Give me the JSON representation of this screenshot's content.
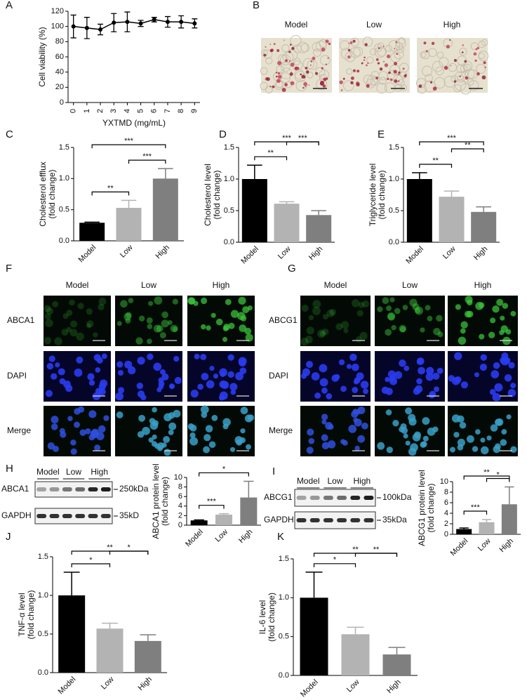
{
  "chart_data": [
    {
      "type": "line",
      "panel": "A",
      "x": [
        0,
        1,
        2,
        3,
        4,
        5,
        6,
        7,
        8,
        9
      ],
      "values": [
        100,
        98,
        96,
        105,
        106,
        104,
        109,
        106,
        106,
        104
      ],
      "errors": [
        15,
        14,
        7,
        12,
        13,
        4,
        3,
        7,
        8,
        6
      ],
      "color": "#000000",
      "xlim": [
        -0.4,
        9.4
      ],
      "ylim": [
        0,
        120
      ],
      "xticks": [
        0,
        1,
        2,
        3,
        4,
        5,
        6,
        7,
        8,
        9
      ],
      "yticks": [
        0,
        20,
        40,
        60,
        80,
        100,
        120
      ],
      "xlabel": "YXTMD (mg/mL)",
      "ylabel": [
        "Cell viability (%)"
      ]
    },
    {
      "type": "bar",
      "panel": "C",
      "categories": [
        "Model",
        "Low",
        "High"
      ],
      "values": [
        0.29,
        0.53,
        1.0
      ],
      "errors": [
        0.01,
        0.12,
        0.16
      ],
      "colors": [
        "#000000",
        "#b3b3b3",
        "#7f7f7f"
      ],
      "ylim": [
        0,
        1.5
      ],
      "yticks": [
        {
          "value": 0,
          "label": "0.0"
        },
        0.5,
        {
          "value": 1,
          "label": "1.0"
        },
        1.5
      ],
      "ylabel": [
        "Cholesterol efflux",
        "(fold change)"
      ],
      "brackets": [
        {
          "from": "Model",
          "to": "Low",
          "label": "**"
        },
        {
          "from": "Low",
          "to": "High",
          "label": "***"
        },
        {
          "from": "Model",
          "to": "High",
          "label": "***"
        }
      ]
    },
    {
      "type": "bar",
      "panel": "D",
      "categories": [
        "Model",
        "Low",
        "High"
      ],
      "values": [
        1.0,
        0.61,
        0.43
      ],
      "errors": [
        0.22,
        0.03,
        0.07
      ],
      "colors": [
        "#000000",
        "#b3b3b3",
        "#7f7f7f"
      ],
      "ylim": [
        0,
        1.5
      ],
      "yticks": [
        {
          "value": 0,
          "label": "0.0"
        },
        0.5,
        {
          "value": 1,
          "label": "1.0"
        },
        1.5
      ],
      "ylabel": [
        "Cholesterol level",
        "(fold change)"
      ],
      "brackets": [
        {
          "from": "Model",
          "to": "Low",
          "label": "**"
        },
        {
          "from": "Low",
          "to": "High",
          "label": "***"
        },
        {
          "from": "Model",
          "to": "High",
          "label": "***"
        }
      ]
    },
    {
      "type": "bar",
      "panel": "E",
      "categories": [
        "Model",
        "Low",
        "High"
      ],
      "values": [
        1.0,
        0.72,
        0.48
      ],
      "errors": [
        0.1,
        0.09,
        0.08
      ],
      "colors": [
        "#000000",
        "#b3b3b3",
        "#7f7f7f"
      ],
      "ylim": [
        0,
        1.5
      ],
      "yticks": [
        {
          "value": 0,
          "label": "0.0"
        },
        0.5,
        {
          "value": 1,
          "label": "1.0"
        },
        1.5
      ],
      "ylabel": [
        "Triglyceride level",
        "(fold change)"
      ],
      "brackets": [
        {
          "from": "Model",
          "to": "Low",
          "label": "**"
        },
        {
          "from": "Low",
          "to": "High",
          "label": "**"
        },
        {
          "from": "Model",
          "to": "High",
          "label": "***"
        }
      ]
    },
    {
      "type": "bar",
      "panel": "H",
      "categories": [
        "Model",
        "Low",
        "High"
      ],
      "values": [
        1.0,
        2.2,
        5.8
      ],
      "errors": [
        0.1,
        0.2,
        3.4
      ],
      "colors": [
        "#000000",
        "#b3b3b3",
        "#7f7f7f"
      ],
      "ylim": [
        0,
        10
      ],
      "yticks": [
        0,
        2,
        4,
        6,
        8,
        10
      ],
      "ylabel": [
        "ABCA1 protein level",
        "(fold change)"
      ],
      "brackets": [
        {
          "from": "Model",
          "to": "Low",
          "label": "***"
        },
        {
          "from": "Model",
          "to": "High",
          "label": "*"
        }
      ]
    },
    {
      "type": "bar",
      "panel": "I",
      "categories": [
        "Model",
        "Low",
        "High"
      ],
      "values": [
        1.0,
        2.3,
        5.7
      ],
      "errors": [
        0.2,
        0.5,
        3.3
      ],
      "colors": [
        "#000000",
        "#b3b3b3",
        "#7f7f7f"
      ],
      "ylim": [
        0,
        10
      ],
      "yticks": [
        0,
        2,
        4,
        6,
        8,
        10
      ],
      "ylabel": [
        "ABCG1 protein level",
        "(fold change)"
      ],
      "brackets": [
        {
          "from": "Model",
          "to": "Low",
          "label": "***"
        },
        {
          "from": "Low",
          "to": "High",
          "label": "*"
        },
        {
          "from": "Model",
          "to": "High",
          "label": "**"
        }
      ]
    },
    {
      "type": "bar",
      "panel": "J",
      "categories": [
        "Model",
        "Low",
        "High"
      ],
      "values": [
        1.0,
        0.57,
        0.41
      ],
      "errors": [
        0.3,
        0.07,
        0.08
      ],
      "colors": [
        "#000000",
        "#b3b3b3",
        "#7f7f7f"
      ],
      "ylim": [
        0,
        1.5
      ],
      "yticks": [
        {
          "value": 0,
          "label": "0.0"
        },
        0.5,
        {
          "value": 1,
          "label": "1.0"
        },
        1.5
      ],
      "ylabel": [
        "TNF-α level",
        "(fold change)"
      ],
      "brackets": [
        {
          "from": "Model",
          "to": "Low",
          "label": "*"
        },
        {
          "from": "Low",
          "to": "High",
          "label": "*"
        },
        {
          "from": "Model",
          "to": "High",
          "label": "**"
        }
      ]
    },
    {
      "type": "bar",
      "panel": "K",
      "categories": [
        "Model",
        "Low",
        "High"
      ],
      "values": [
        1.0,
        0.53,
        0.27
      ],
      "errors": [
        0.33,
        0.09,
        0.09
      ],
      "colors": [
        "#000000",
        "#b3b3b3",
        "#7f7f7f"
      ],
      "ylim": [
        0,
        1.5
      ],
      "yticks": [
        {
          "value": 0,
          "label": "0.0"
        },
        0.5,
        {
          "value": 1,
          "label": "1.0"
        },
        1.5
      ],
      "ylabel": [
        "IL-6 level",
        "(fold change)"
      ],
      "brackets": [
        {
          "from": "Model",
          "to": "Low",
          "label": "*"
        },
        {
          "from": "Low",
          "to": "High",
          "label": "**"
        },
        {
          "from": "Model",
          "to": "High",
          "label": "**"
        }
      ]
    }
  ],
  "panel_B": {
    "letter": "B",
    "columns": [
      "Model",
      "Low",
      "High"
    ]
  },
  "panel_F": {
    "letter": "F",
    "columns": [
      "Model",
      "Low",
      "High"
    ],
    "rows": [
      "ABCA1",
      "DAPI",
      "Merge"
    ]
  },
  "panel_G": {
    "letter": "G",
    "columns": [
      "Model",
      "Low",
      "High"
    ],
    "rows": [
      "ABCG1",
      "DAPI",
      "Merge"
    ]
  },
  "blot_H": {
    "lanes": [
      "Model",
      "Low",
      "High"
    ],
    "rows": [
      "ABCA1",
      "GAPDH"
    ],
    "markers": [
      "250kDa",
      "35kD"
    ]
  },
  "blot_I": {
    "lanes": [
      "Model",
      "Low",
      "High"
    ],
    "rows": [
      "ABCG1",
      "GAPDH"
    ],
    "markers": [
      "100kDa",
      "35kDa"
    ]
  }
}
